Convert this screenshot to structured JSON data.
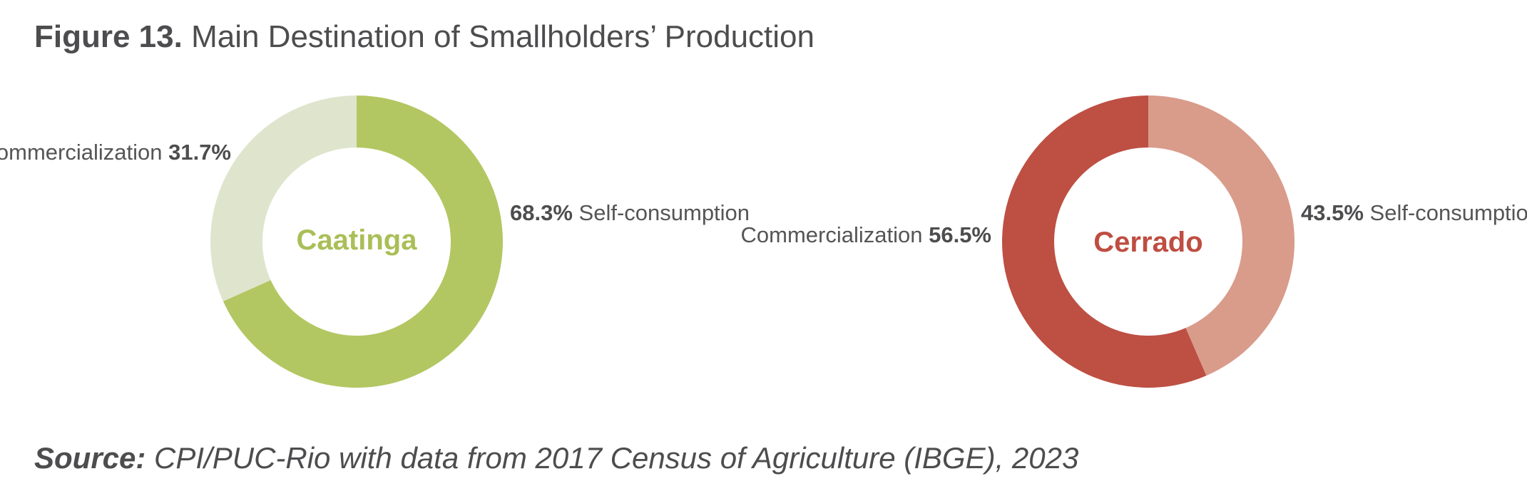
{
  "header": {
    "figure_label": "Figure 13.",
    "title": "Main Destination of Smallholders’ Production"
  },
  "source": {
    "label": "Source:",
    "text": "CPI/PUC-Rio with data from 2017 Census of Agriculture (IBGE), 2023"
  },
  "chart_data": [
    {
      "type": "pie",
      "center_label": "Caatinga",
      "center_color": "#a9bf57",
      "slices": [
        {
          "label": "Self-consumption",
          "value": 68.3,
          "value_text": "68.3%",
          "color": "#b2c762"
        },
        {
          "label": "Commercialization",
          "value": 31.7,
          "value_text": "31.7%",
          "color": "#dfe5cd"
        }
      ]
    },
    {
      "type": "pie",
      "center_label": "Cerrado",
      "center_color": "#bf4d41",
      "slices": [
        {
          "label": "Self-consumption",
          "value": 43.5,
          "value_text": "43.5%",
          "color": "#d99b8a"
        },
        {
          "label": "Commercialization",
          "value": 56.5,
          "value_text": "56.5%",
          "color": "#be4f43"
        }
      ]
    }
  ]
}
